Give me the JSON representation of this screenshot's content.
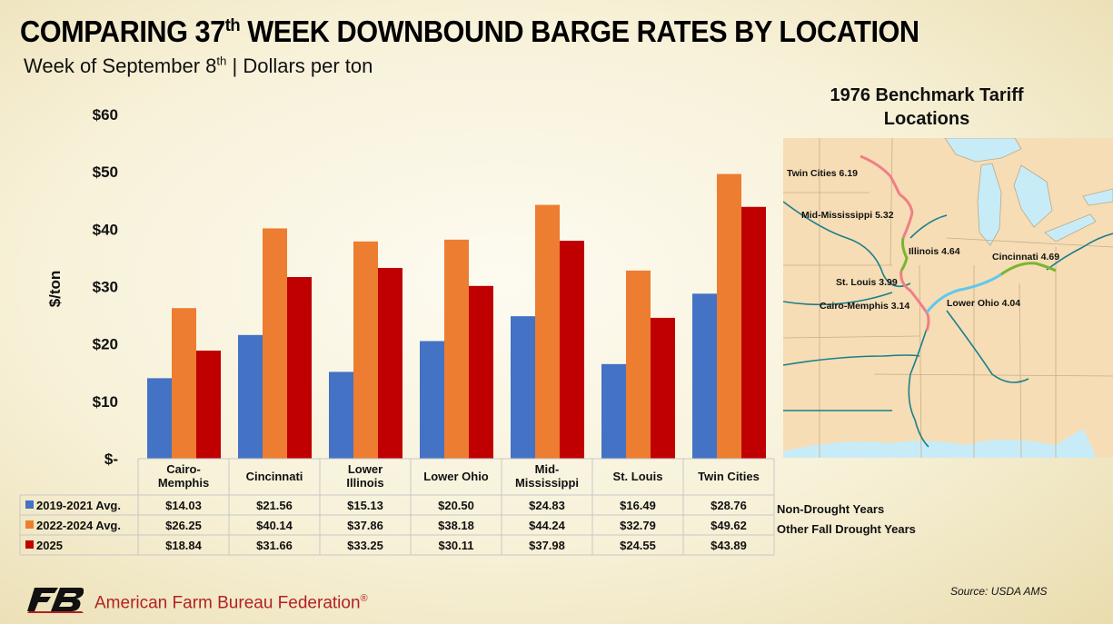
{
  "header": {
    "title_pre": "COMPARING 37",
    "title_sup": "th",
    "title_post": " WEEK DOWNBOUND BARGE RATES BY LOCATION",
    "subtitle_pre": "Week of September 8",
    "subtitle_sup": "th",
    "subtitle_post": " | Dollars per ton"
  },
  "chart_data": {
    "type": "bar",
    "ylabel": "$/ton",
    "ylim": [
      0,
      60
    ],
    "yticks": [
      0,
      10,
      20,
      30,
      40,
      50,
      60
    ],
    "ytick_labels": [
      "$-",
      "$10",
      "$20",
      "$30",
      "$40",
      "$50",
      "$60"
    ],
    "categories": [
      [
        "Cairo-",
        "Memphis"
      ],
      [
        "Cincinnati"
      ],
      [
        "Lower",
        "Illinois"
      ],
      [
        "Lower Ohio"
      ],
      [
        "Mid-",
        "Mississippi"
      ],
      [
        "St. Louis"
      ],
      [
        "Twin Cities"
      ]
    ],
    "series": [
      {
        "name": "2019-2021 Avg.",
        "color": "#4472c4",
        "note": "Non-Drought Years",
        "values": [
          14.03,
          21.56,
          15.13,
          20.5,
          24.83,
          16.49,
          28.76
        ],
        "labels": [
          "$14.03",
          "$21.56",
          "$15.13",
          "$20.50",
          "$24.83",
          "$16.49",
          "$28.76"
        ]
      },
      {
        "name": "2022-2024 Avg.",
        "color": "#ed7d31",
        "note": "Other Fall Drought Years",
        "values": [
          26.25,
          40.14,
          37.86,
          38.18,
          44.24,
          32.79,
          49.62
        ],
        "labels": [
          "$26.25",
          "$40.14",
          "$37.86",
          "$38.18",
          "$44.24",
          "$32.79",
          "$49.62"
        ]
      },
      {
        "name": "2025",
        "color": "#c00000",
        "note": "",
        "values": [
          18.84,
          31.66,
          33.25,
          30.11,
          37.98,
          24.55,
          43.89
        ],
        "labels": [
          "$18.84",
          "$31.66",
          "$33.25",
          "$30.11",
          "$37.98",
          "$24.55",
          "$43.89"
        ]
      }
    ]
  },
  "map": {
    "title_line1": "1976 Benchmark Tariff",
    "title_line2": "Locations",
    "labels": {
      "twin_cities": "Twin Cities 6.19",
      "mid_mississippi": "Mid-Mississippi 5.32",
      "illinois": "Illinois 4.64",
      "cincinnati": "Cincinnati 4.69",
      "st_louis": "St. Louis 3.99",
      "cairo_memphis": "Cairo-Memphis 3.14",
      "lower_ohio": "Lower Ohio 4.04"
    },
    "colors": {
      "land": "#f6ddb5",
      "water": "#c8ecf7",
      "river": "#1a7f8c",
      "segment_red": "#ef7f86",
      "segment_green": "#79b531",
      "segment_blue": "#5fc8ee"
    }
  },
  "footer": {
    "source": "Source: USDA AMS",
    "org": "American Farm Bureau Federation",
    "org_mark": "®"
  }
}
